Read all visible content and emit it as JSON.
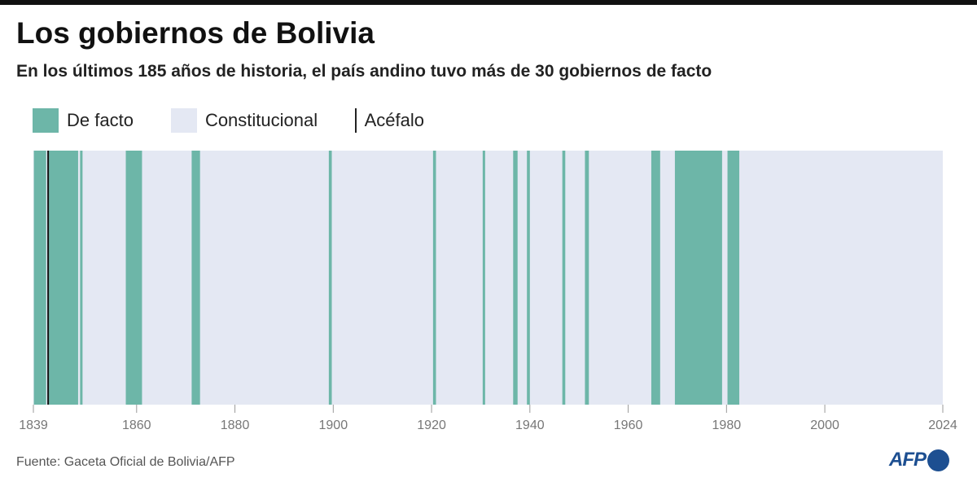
{
  "header": {
    "title": "Los gobiernos de Bolivia",
    "subtitle": "En los últimos 185 años de historia, el país andino tuvo más de 30 gobiernos de facto"
  },
  "legend": {
    "de_facto": "De facto",
    "constitucional": "Constitucional",
    "acefalo": "Acéfalo"
  },
  "colors": {
    "de_facto": "#6db6a8",
    "constitucional": "#e4e8f3",
    "acefalo": "#111111"
  },
  "footer": {
    "source": "Fuente: Gaceta Oficial de Bolivia/AFP",
    "logo": "AFP"
  },
  "chart_data": {
    "type": "timeline",
    "title": "Los gobiernos de Bolivia",
    "xlim": [
      1839,
      2024
    ],
    "ticks": [
      "1839",
      "1860",
      "1880",
      "1900",
      "1920",
      "1940",
      "1960",
      "1980",
      "2000",
      "2024"
    ],
    "tick_values": [
      1839,
      1860,
      1880,
      1900,
      1920,
      1940,
      1960,
      1980,
      2000,
      2024
    ],
    "background_type": "Constitucional",
    "de_facto": [
      [
        1839.1,
        1841.6
      ],
      [
        1842.1,
        1848.1
      ],
      [
        1848.5,
        1849.0
      ],
      [
        1857.8,
        1861.1
      ],
      [
        1871.2,
        1872.9
      ],
      [
        1899.1,
        1899.7
      ],
      [
        1920.3,
        1920.9
      ],
      [
        1930.4,
        1930.9
      ],
      [
        1936.6,
        1937.5
      ],
      [
        1939.4,
        1940.0
      ],
      [
        1946.6,
        1947.2
      ],
      [
        1951.2,
        1952.0
      ],
      [
        1964.7,
        1966.5
      ],
      [
        1969.5,
        1979.1
      ],
      [
        1980.2,
        1982.6
      ]
    ],
    "acefalo": [
      1842.0
    ]
  }
}
